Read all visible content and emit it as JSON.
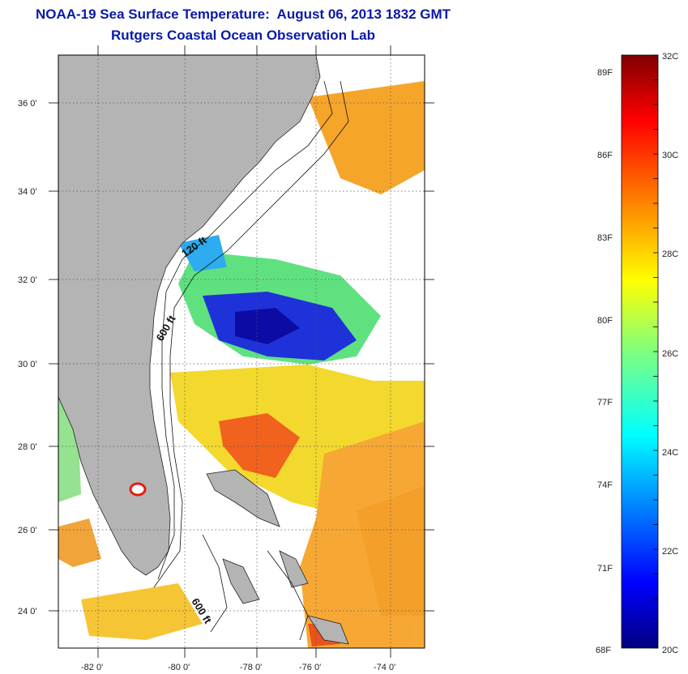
{
  "title": {
    "line1": "NOAA-19 Sea Surface Temperature:  August 06, 2013 1832 GMT",
    "line2": "Rutgers Coastal Ocean Observation Lab"
  },
  "map": {
    "lon_ticks": [
      "-82 0'",
      "-80 0'",
      "-78 0'",
      "-76 0'",
      "-74 0'"
    ],
    "lat_ticks": [
      "36 0'",
      "34 0'",
      "32 0'",
      "30 0'",
      "28 0'",
      "26 0'",
      "24 0'"
    ],
    "contour_labels": [
      "120 ft",
      "600 ft",
      "600 ft"
    ],
    "colors": {
      "land": "#b4b4b4",
      "ocean_nodata": "#ffffff"
    }
  },
  "colorbar": {
    "min_c": 20,
    "max_c": 32,
    "fahrenheit_labels": [
      "89F",
      "86F",
      "83F",
      "80F",
      "77F",
      "74F",
      "71F",
      "68F"
    ],
    "celsius_labels": [
      "32C",
      "30C",
      "28C",
      "26C",
      "24C",
      "22C",
      "20C"
    ]
  }
}
